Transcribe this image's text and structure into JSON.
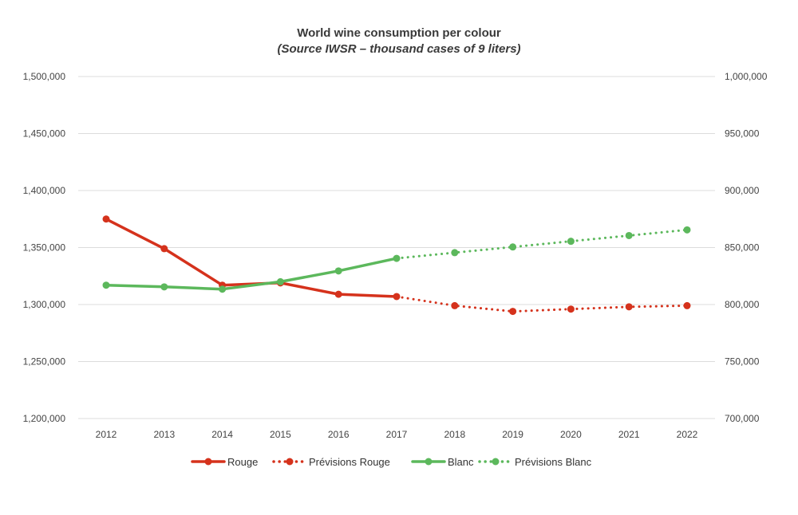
{
  "chart_data": {
    "type": "line",
    "title": "World wine consumption per colour",
    "subtitle": "(Source IWSR – thousand cases of 9 liters)",
    "categories": [
      "2012",
      "2013",
      "2014",
      "2015",
      "2016",
      "2017",
      "2018",
      "2019",
      "2020",
      "2021",
      "2022"
    ],
    "y_left": {
      "ylim": [
        1200000,
        1500000
      ],
      "ticks": [
        1200000,
        1250000,
        1300000,
        1350000,
        1400000,
        1450000,
        1500000
      ],
      "tick_labels": [
        "1,200,000",
        "1,250,000",
        "1,300,000",
        "1,350,000",
        "1,400,000",
        "1,450,000",
        "1,500,000"
      ]
    },
    "y_right": {
      "ylim": [
        700000,
        1000000
      ],
      "ticks": [
        700000,
        750000,
        800000,
        850000,
        900000,
        950000,
        1000000
      ],
      "tick_labels": [
        "700,000",
        "750,000",
        "800,000",
        "850,000",
        "900,000",
        "950,000",
        "1,000,000"
      ]
    },
    "grid": true,
    "legend_position": "bottom",
    "series": [
      {
        "name": "Rouge",
        "axis": "left",
        "color": "#d5321c",
        "dash": false,
        "values": [
          1375000,
          1349000,
          1317000,
          1319000,
          1309000,
          1307000,
          null,
          null,
          null,
          null,
          null
        ]
      },
      {
        "name": "Prévisions Rouge",
        "axis": "left",
        "color": "#d5321c",
        "dash": true,
        "values": [
          null,
          null,
          null,
          null,
          null,
          1307000,
          1299000,
          1294000,
          1296000,
          1298000,
          1299000
        ]
      },
      {
        "name": "Blanc",
        "axis": "right",
        "color": "#5cb85c",
        "dash": false,
        "values": [
          817000,
          815500,
          813500,
          820000,
          829500,
          840500,
          null,
          null,
          null,
          null,
          null
        ]
      },
      {
        "name": "Prévisions Blanc",
        "axis": "right",
        "color": "#5cb85c",
        "dash": true,
        "values": [
          null,
          null,
          null,
          null,
          null,
          840500,
          845500,
          850500,
          855500,
          860500,
          865500
        ]
      }
    ]
  }
}
